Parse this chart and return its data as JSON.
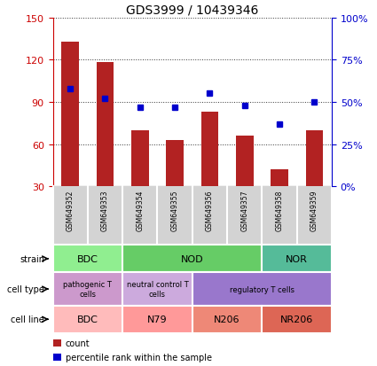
{
  "title": "GDS3999 / 10439346",
  "samples": [
    "GSM649352",
    "GSM649353",
    "GSM649354",
    "GSM649355",
    "GSM649356",
    "GSM649357",
    "GSM649358",
    "GSM649359"
  ],
  "counts": [
    133,
    118,
    70,
    63,
    83,
    66,
    42,
    70
  ],
  "percentile_ranks": [
    58,
    52,
    47,
    47,
    55,
    48,
    37,
    50
  ],
  "ylim_left": [
    30,
    150
  ],
  "yticks_left": [
    30,
    60,
    90,
    120,
    150
  ],
  "ylim_right": [
    0,
    100
  ],
  "yticks_right": [
    0,
    25,
    50,
    75,
    100
  ],
  "bar_color": "#b22222",
  "dot_color": "#0000cc",
  "bar_width": 0.5,
  "strain_groups": [
    {
      "label": "BDC",
      "start": 0,
      "end": 2,
      "color": "#90ee90"
    },
    {
      "label": "NOD",
      "start": 2,
      "end": 6,
      "color": "#66cc66"
    },
    {
      "label": "NOR",
      "start": 6,
      "end": 8,
      "color": "#55bb99"
    }
  ],
  "cell_type_groups": [
    {
      "label": "pathogenic T\ncells",
      "start": 0,
      "end": 2,
      "color": "#cc99cc"
    },
    {
      "label": "neutral control T\ncells",
      "start": 2,
      "end": 4,
      "color": "#ccaadd"
    },
    {
      "label": "regulatory T cells",
      "start": 4,
      "end": 8,
      "color": "#9977cc"
    }
  ],
  "cell_line_groups": [
    {
      "label": "BDC",
      "start": 0,
      "end": 2,
      "color": "#ffbbbb"
    },
    {
      "label": "N79",
      "start": 2,
      "end": 4,
      "color": "#ff9999"
    },
    {
      "label": "N206",
      "start": 4,
      "end": 6,
      "color": "#ee8877"
    },
    {
      "label": "NR206",
      "start": 6,
      "end": 8,
      "color": "#dd6655"
    }
  ],
  "row_labels": [
    "strain",
    "cell type",
    "cell line"
  ],
  "sample_bg_color": "#d3d3d3",
  "left_tick_color": "#cc0000",
  "right_tick_color": "#0000cc",
  "legend_items": [
    {
      "color": "#b22222",
      "label": "count"
    },
    {
      "color": "#0000cc",
      "label": "percentile rank within the sample"
    }
  ]
}
